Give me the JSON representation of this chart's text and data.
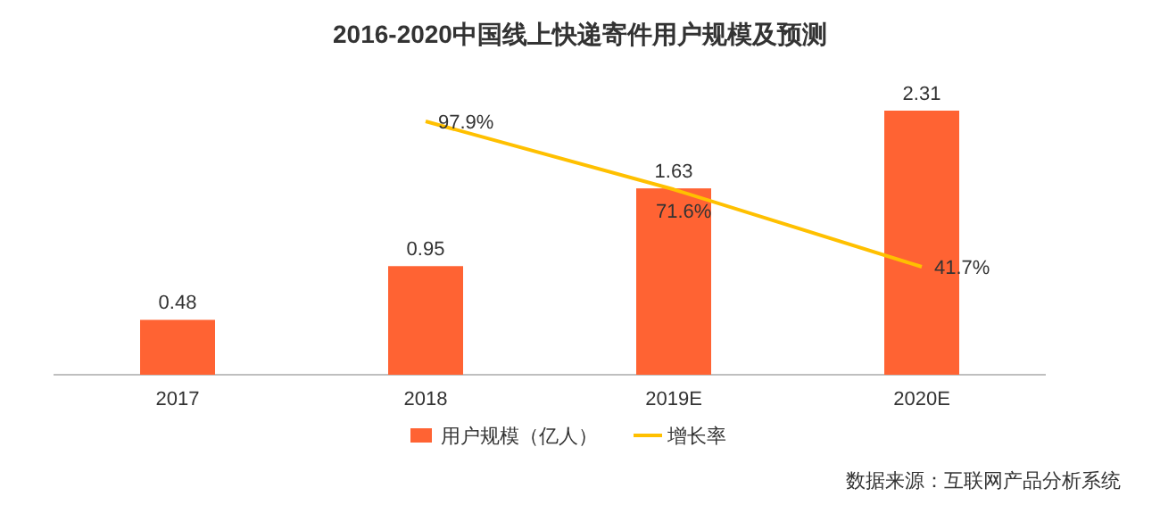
{
  "chart_data": {
    "type": "bar",
    "title": "2016-2020中国线上快递寄件用户规模及预测",
    "categories": [
      "2017",
      "2018",
      "2019E",
      "2020E"
    ],
    "series": [
      {
        "name": "用户规模（亿人）",
        "color": "#ff6333",
        "values": [
          0.48,
          0.95,
          1.63,
          2.31
        ],
        "value_labels": [
          "0.48",
          "0.95",
          "1.63",
          "2.31"
        ]
      },
      {
        "name": "增长率",
        "type": "line",
        "axis": "y2",
        "color": "#ffc000",
        "values": [
          null,
          97.9,
          71.6,
          41.7
        ],
        "value_labels": [
          null,
          "97.9%",
          "71.6%",
          "41.7%"
        ]
      }
    ],
    "tick_labels": "x",
    "grid": false,
    "legend": "bottom",
    "marker": "none",
    "line_style": "solid",
    "annotations": [
      "数据来源：互联网产品分析系统"
    ]
  }
}
